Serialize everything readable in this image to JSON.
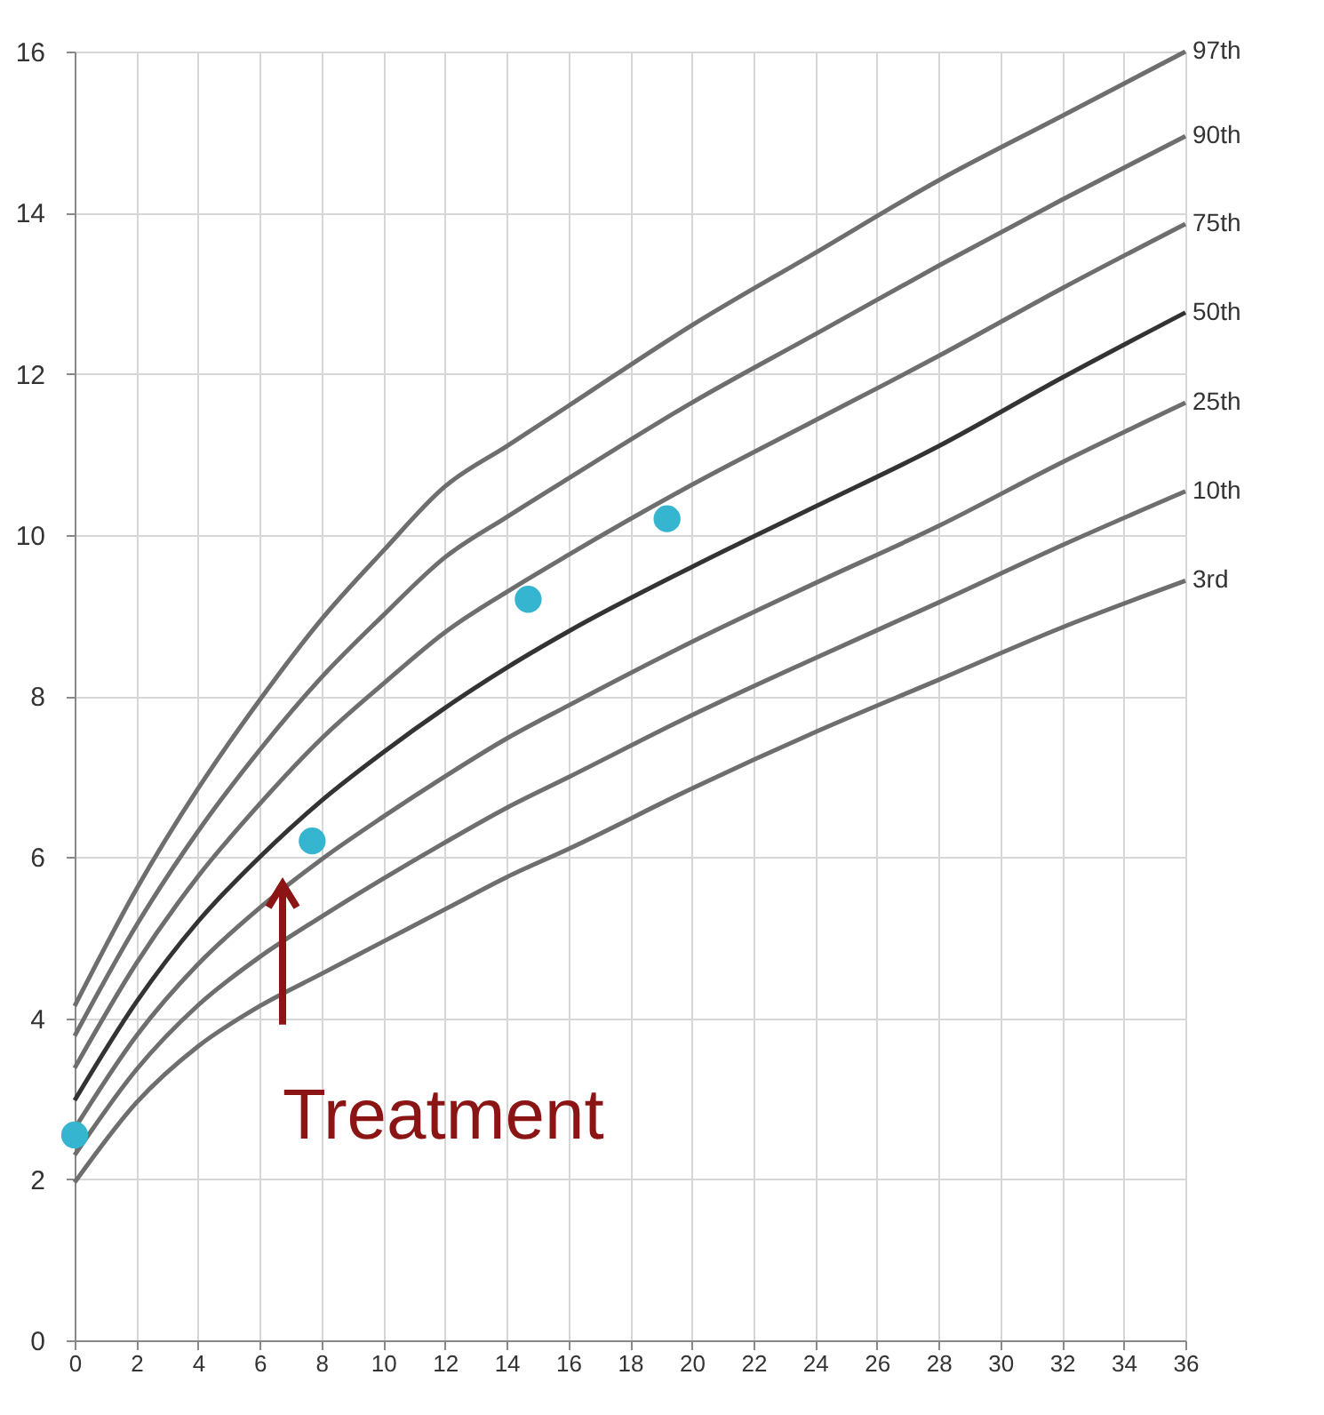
{
  "chart_data": {
    "type": "line",
    "x": [
      0,
      2,
      4,
      6,
      8,
      10,
      12,
      14,
      16,
      20,
      24,
      28,
      32,
      36
    ],
    "series": [
      {
        "name": "97th",
        "color": "#6e6e6e",
        "values": [
          4.15,
          5.6,
          6.85,
          7.95,
          8.95,
          9.8,
          10.6,
          11.1,
          11.6,
          12.6,
          13.5,
          14.4,
          15.2,
          16.0
        ]
      },
      {
        "name": "90th",
        "color": "#6e6e6e",
        "values": [
          3.78,
          5.15,
          6.32,
          7.33,
          8.23,
          9.0,
          9.72,
          10.22,
          10.7,
          11.64,
          12.49,
          13.34,
          14.16,
          14.95
        ]
      },
      {
        "name": "75th",
        "color": "#6e6e6e",
        "values": [
          3.38,
          4.68,
          5.76,
          6.66,
          7.47,
          8.15,
          8.79,
          9.29,
          9.75,
          10.62,
          11.42,
          12.22,
          13.06,
          13.86
        ]
      },
      {
        "name": "50th",
        "color": "#333333",
        "values": [
          2.98,
          4.2,
          5.2,
          6.0,
          6.7,
          7.3,
          7.85,
          8.35,
          8.8,
          9.6,
          10.35,
          11.1,
          11.95,
          12.76
        ]
      },
      {
        "name": "25th",
        "color": "#6e6e6e",
        "values": [
          2.63,
          3.78,
          4.67,
          5.37,
          5.97,
          6.5,
          7.0,
          7.47,
          7.88,
          8.67,
          9.4,
          10.11,
          10.9,
          11.64
        ]
      },
      {
        "name": "10th",
        "color": "#6e6e6e",
        "values": [
          2.3,
          3.36,
          4.16,
          4.76,
          5.26,
          5.73,
          6.18,
          6.61,
          6.99,
          7.76,
          8.47,
          9.16,
          9.87,
          10.54
        ]
      },
      {
        "name": "3rd",
        "color": "#6e6e6e",
        "values": [
          1.96,
          2.95,
          3.65,
          4.15,
          4.55,
          4.95,
          5.35,
          5.75,
          6.1,
          6.85,
          7.55,
          8.2,
          8.85,
          9.43
        ]
      },
      {
        "type": "scatter",
        "color": "#35b5cf",
        "x": [
          0,
          7.7,
          14.7,
          19.2
        ],
        "values": [
          2.55,
          6.2,
          9.2,
          10.2
        ]
      }
    ],
    "annotations": [
      {
        "text": "Treatment",
        "x": 7.2,
        "y": 5.2
      }
    ],
    "xlim": [
      0,
      36
    ],
    "xticks": [
      0,
      2,
      4,
      6,
      8,
      10,
      12,
      14,
      16,
      18,
      20,
      22,
      24,
      26,
      28,
      30,
      32,
      34,
      36
    ],
    "ylim": [
      0,
      16
    ],
    "yticks": [
      0,
      2,
      4,
      6,
      8,
      10,
      12,
      14,
      16
    ],
    "grid": true
  }
}
